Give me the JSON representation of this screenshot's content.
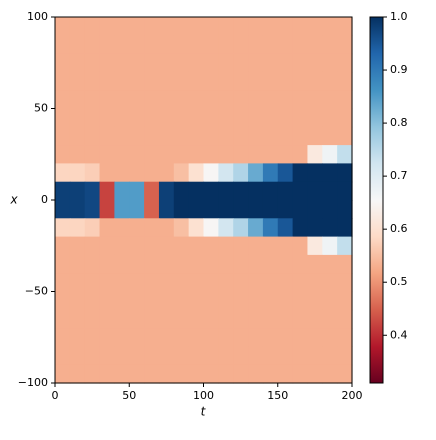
{
  "chart_data": {
    "type": "heatmap",
    "xlabel": "t",
    "ylabel": "x",
    "x": [
      5,
      15,
      25,
      35,
      45,
      55,
      65,
      75,
      85,
      95,
      105,
      115,
      125,
      135,
      145,
      155,
      165,
      175,
      185,
      195
    ],
    "y": [
      95,
      85,
      75,
      65,
      55,
      45,
      35,
      25,
      15,
      5,
      -5,
      -15,
      -25,
      -35,
      -45,
      -55,
      -65,
      -75,
      -85,
      -95
    ],
    "z": [
      [
        0.53,
        0.53,
        0.53,
        0.53,
        0.53,
        0.53,
        0.53,
        0.53,
        0.53,
        0.53,
        0.53,
        0.53,
        0.53,
        0.53,
        0.53,
        0.53,
        0.53,
        0.53,
        0.53,
        0.53
      ],
      [
        0.53,
        0.53,
        0.53,
        0.53,
        0.53,
        0.53,
        0.53,
        0.53,
        0.53,
        0.53,
        0.53,
        0.53,
        0.53,
        0.53,
        0.53,
        0.53,
        0.53,
        0.53,
        0.53,
        0.53
      ],
      [
        0.53,
        0.53,
        0.53,
        0.53,
        0.53,
        0.53,
        0.53,
        0.53,
        0.53,
        0.53,
        0.53,
        0.53,
        0.53,
        0.53,
        0.53,
        0.53,
        0.53,
        0.53,
        0.53,
        0.53
      ],
      [
        0.53,
        0.53,
        0.53,
        0.53,
        0.53,
        0.53,
        0.53,
        0.53,
        0.53,
        0.53,
        0.53,
        0.53,
        0.53,
        0.53,
        0.53,
        0.53,
        0.53,
        0.53,
        0.53,
        0.53
      ],
      [
        0.53,
        0.53,
        0.53,
        0.53,
        0.53,
        0.53,
        0.53,
        0.53,
        0.53,
        0.53,
        0.53,
        0.53,
        0.53,
        0.53,
        0.53,
        0.53,
        0.53,
        0.53,
        0.53,
        0.53
      ],
      [
        0.53,
        0.53,
        0.53,
        0.53,
        0.53,
        0.53,
        0.53,
        0.53,
        0.53,
        0.53,
        0.53,
        0.53,
        0.53,
        0.53,
        0.53,
        0.53,
        0.53,
        0.53,
        0.53,
        0.53
      ],
      [
        0.53,
        0.53,
        0.53,
        0.53,
        0.53,
        0.53,
        0.53,
        0.53,
        0.53,
        0.53,
        0.53,
        0.53,
        0.53,
        0.53,
        0.53,
        0.53,
        0.53,
        0.53,
        0.53,
        0.53
      ],
      [
        0.53,
        0.53,
        0.53,
        0.53,
        0.53,
        0.53,
        0.53,
        0.53,
        0.53,
        0.53,
        0.53,
        0.53,
        0.53,
        0.53,
        0.53,
        0.53,
        0.53,
        0.62,
        0.67,
        0.74
      ],
      [
        0.58,
        0.58,
        0.57,
        0.53,
        0.53,
        0.53,
        0.53,
        0.53,
        0.55,
        0.6,
        0.65,
        0.72,
        0.76,
        0.83,
        0.9,
        0.95,
        1,
        1,
        1,
        1
      ],
      [
        0.98,
        0.98,
        0.97,
        0.42,
        0.85,
        0.85,
        0.45,
        0.98,
        1,
        1,
        1,
        1,
        1,
        1,
        1,
        1,
        1,
        1,
        1,
        1
      ],
      [
        0.98,
        0.98,
        0.97,
        0.42,
        0.85,
        0.85,
        0.45,
        0.98,
        1,
        1,
        1,
        1,
        1,
        1,
        1,
        1,
        1,
        1,
        1,
        1
      ],
      [
        0.58,
        0.58,
        0.57,
        0.53,
        0.53,
        0.53,
        0.53,
        0.53,
        0.55,
        0.6,
        0.65,
        0.72,
        0.76,
        0.83,
        0.9,
        0.95,
        1,
        1,
        1,
        1
      ],
      [
        0.53,
        0.53,
        0.53,
        0.53,
        0.53,
        0.53,
        0.53,
        0.53,
        0.53,
        0.53,
        0.53,
        0.53,
        0.53,
        0.53,
        0.53,
        0.53,
        0.53,
        0.62,
        0.67,
        0.74
      ],
      [
        0.53,
        0.53,
        0.53,
        0.53,
        0.53,
        0.53,
        0.53,
        0.53,
        0.53,
        0.53,
        0.53,
        0.53,
        0.53,
        0.53,
        0.53,
        0.53,
        0.53,
        0.53,
        0.53,
        0.53
      ],
      [
        0.53,
        0.53,
        0.53,
        0.53,
        0.53,
        0.53,
        0.53,
        0.53,
        0.53,
        0.53,
        0.53,
        0.53,
        0.53,
        0.53,
        0.53,
        0.53,
        0.53,
        0.53,
        0.53,
        0.53
      ],
      [
        0.53,
        0.53,
        0.53,
        0.53,
        0.53,
        0.53,
        0.53,
        0.53,
        0.53,
        0.53,
        0.53,
        0.53,
        0.53,
        0.53,
        0.53,
        0.53,
        0.53,
        0.53,
        0.53,
        0.53
      ],
      [
        0.53,
        0.53,
        0.53,
        0.53,
        0.53,
        0.53,
        0.53,
        0.53,
        0.53,
        0.53,
        0.53,
        0.53,
        0.53,
        0.53,
        0.53,
        0.53,
        0.53,
        0.53,
        0.53,
        0.53
      ],
      [
        0.53,
        0.53,
        0.53,
        0.53,
        0.53,
        0.53,
        0.53,
        0.53,
        0.53,
        0.53,
        0.53,
        0.53,
        0.53,
        0.53,
        0.53,
        0.53,
        0.53,
        0.53,
        0.53,
        0.53
      ],
      [
        0.53,
        0.53,
        0.53,
        0.53,
        0.53,
        0.53,
        0.53,
        0.53,
        0.53,
        0.53,
        0.53,
        0.53,
        0.53,
        0.53,
        0.53,
        0.53,
        0.53,
        0.53,
        0.53,
        0.53
      ],
      [
        0.53,
        0.53,
        0.53,
        0.53,
        0.53,
        0.53,
        0.53,
        0.53,
        0.53,
        0.53,
        0.53,
        0.53,
        0.53,
        0.53,
        0.53,
        0.53,
        0.53,
        0.53,
        0.53,
        0.53
      ]
    ],
    "xlim": [
      0,
      200
    ],
    "xticks": [
      0,
      50,
      100,
      150,
      200
    ],
    "ylim": [
      -100,
      100
    ],
    "yticks": [
      {
        "value": -100,
        "label": "−100"
      },
      {
        "value": -50,
        "label": "−50"
      },
      0,
      50,
      100
    ],
    "zlim": [
      0.31,
      1.0
    ],
    "zticks": [
      0.4,
      0.5,
      0.6,
      0.7,
      0.8,
      0.9,
      1.0
    ],
    "zticklabels": [
      "0.4",
      "0.5",
      "0.6",
      "0.7",
      "0.8",
      "0.9",
      "1.0"
    ],
    "colorscale": [
      "#67001f",
      "#b2182b",
      "#d6604d",
      "#f4a582",
      "#fddbc7",
      "#f7f7f7",
      "#d1e5f0",
      "#92c5de",
      "#4393c3",
      "#2166ac",
      "#053061"
    ]
  }
}
